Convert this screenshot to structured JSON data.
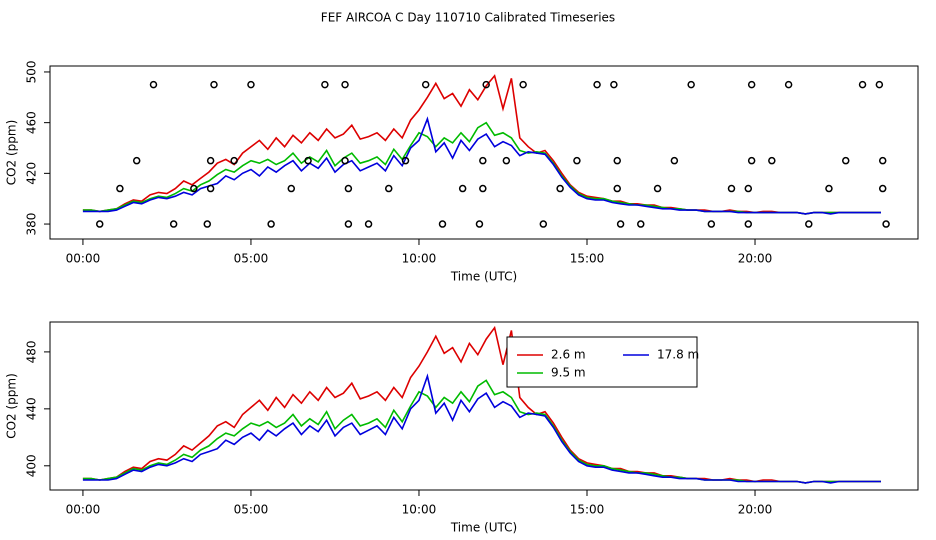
{
  "title": "FEF AIRCOA C  Day 110710  Calibrated Timeseries",
  "chart_data": [
    {
      "type": "line",
      "xlabel": "Time (UTC)",
      "ylabel": "CO2 (ppm)",
      "xlim": [
        -0.98,
        24.85
      ],
      "ylim": [
        368.2,
        504.7
      ],
      "xticks": [
        {
          "value": 0,
          "label": "00:00"
        },
        {
          "value": 5,
          "label": "05:00"
        },
        {
          "value": 10,
          "label": "10:00"
        },
        {
          "value": 15,
          "label": "15:00"
        },
        {
          "value": 20,
          "label": "20:00"
        }
      ],
      "yticks": [
        380,
        420,
        460,
        500
      ],
      "x": [
        0,
        0.25,
        0.5,
        0.75,
        1,
        1.25,
        1.5,
        1.75,
        2,
        2.25,
        2.5,
        2.75,
        3,
        3.25,
        3.5,
        3.75,
        4,
        4.25,
        4.5,
        4.75,
        5,
        5.25,
        5.5,
        5.75,
        6,
        6.25,
        6.5,
        6.75,
        7,
        7.25,
        7.5,
        7.75,
        8,
        8.25,
        8.5,
        8.75,
        9,
        9.25,
        9.5,
        9.75,
        10,
        10.25,
        10.5,
        10.75,
        11,
        11.25,
        11.5,
        11.75,
        12,
        12.25,
        12.5,
        12.75,
        13,
        13.25,
        13.5,
        13.75,
        14,
        14.25,
        14.5,
        14.75,
        15,
        15.25,
        15.5,
        15.75,
        16,
        16.25,
        16.5,
        16.75,
        17,
        17.25,
        17.5,
        17.75,
        18,
        18.25,
        18.5,
        18.75,
        19,
        19.25,
        19.5,
        19.75,
        20,
        20.25,
        20.5,
        20.75,
        21,
        21.25,
        21.5,
        21.75,
        22,
        22.25,
        22.5,
        22.75,
        23,
        23.25,
        23.5,
        23.75
      ],
      "series": [
        {
          "color": "#dd0000",
          "values": [
            391,
            391,
            390,
            391,
            392,
            396,
            399,
            398,
            403,
            405,
            404,
            408,
            414,
            411,
            416,
            421,
            428,
            431,
            427,
            436,
            441,
            446,
            439,
            448,
            441,
            450,
            444,
            452,
            446,
            455,
            448,
            451,
            458,
            447,
            449,
            452,
            446,
            455,
            448,
            462,
            470,
            480,
            491,
            479,
            483,
            473,
            486,
            478,
            489,
            497,
            471,
            495,
            448,
            441,
            436,
            438,
            430,
            420,
            411,
            405,
            402,
            401,
            400,
            398,
            398,
            396,
            396,
            395,
            395,
            393,
            393,
            392,
            391,
            391,
            391,
            390,
            390,
            391,
            390,
            390,
            389,
            390,
            390,
            389,
            389,
            389,
            388,
            389,
            389,
            389,
            389,
            389,
            389,
            389,
            389,
            389
          ]
        },
        {
          "color": "#00bb00",
          "values": [
            391,
            391,
            390,
            391,
            392,
            395,
            398,
            397,
            400,
            402,
            401,
            404,
            408,
            406,
            411,
            414,
            419,
            423,
            421,
            426,
            430,
            428,
            431,
            427,
            430,
            436,
            428,
            433,
            429,
            438,
            426,
            432,
            436,
            428,
            430,
            433,
            427,
            439,
            431,
            442,
            452,
            449,
            441,
            448,
            444,
            452,
            445,
            456,
            460,
            450,
            452,
            448,
            438,
            436,
            437,
            436,
            428,
            418,
            410,
            404,
            401,
            400,
            400,
            398,
            397,
            396,
            395,
            395,
            394,
            393,
            392,
            392,
            391,
            391,
            390,
            390,
            390,
            390,
            390,
            389,
            389,
            389,
            389,
            389,
            389,
            389,
            388,
            389,
            389,
            389,
            389,
            389,
            389,
            389,
            389,
            389
          ]
        },
        {
          "color": "#0000dd",
          "values": [
            390,
            390,
            390,
            390,
            391,
            394,
            397,
            396,
            399,
            401,
            400,
            402,
            405,
            403,
            408,
            410,
            412,
            418,
            415,
            420,
            423,
            418,
            425,
            421,
            426,
            430,
            422,
            428,
            424,
            432,
            421,
            427,
            430,
            422,
            425,
            428,
            422,
            434,
            426,
            440,
            446,
            463,
            437,
            444,
            432,
            446,
            438,
            447,
            451,
            441,
            445,
            442,
            434,
            437,
            436,
            435,
            427,
            417,
            409,
            403,
            400,
            399,
            399,
            397,
            396,
            395,
            395,
            394,
            393,
            392,
            392,
            391,
            391,
            391,
            390,
            390,
            390,
            390,
            389,
            389,
            389,
            389,
            389,
            389,
            389,
            389,
            388,
            389,
            389,
            388,
            389,
            389,
            389,
            389,
            389,
            389
          ]
        }
      ],
      "points": {
        "x": [
          0.5,
          1.1,
          1.6,
          2.1,
          2.7,
          3.3,
          3.7,
          3.8,
          3.8,
          3.9,
          4.5,
          5.0,
          5.6,
          6.2,
          6.7,
          7.2,
          7.8,
          7.8,
          7.9,
          7.9,
          8.5,
          9.1,
          9.6,
          10.2,
          10.7,
          11.3,
          11.8,
          11.9,
          11.9,
          12.0,
          12.6,
          13.1,
          13.7,
          14.2,
          14.7,
          15.3,
          15.8,
          15.9,
          15.9,
          16.0,
          16.6,
          17.1,
          17.6,
          18.1,
          18.7,
          19.3,
          19.8,
          19.8,
          19.9,
          19.9,
          20.5,
          21.0,
          21.6,
          22.2,
          22.7,
          23.2,
          23.7,
          23.8,
          23.8,
          23.9
        ],
        "values": [
          380,
          408,
          430,
          490,
          380,
          408,
          380,
          408,
          430,
          490,
          430,
          490,
          380,
          408,
          430,
          490,
          490,
          430,
          408,
          380,
          380,
          408,
          430,
          490,
          380,
          408,
          380,
          408,
          430,
          490,
          430,
          490,
          380,
          408,
          430,
          490,
          490,
          430,
          408,
          380,
          380,
          408,
          430,
          490,
          380,
          408,
          380,
          408,
          430,
          490,
          430,
          490,
          380,
          408,
          430,
          490,
          490,
          430,
          408,
          380
        ],
        "color": "#000000"
      }
    },
    {
      "type": "line",
      "xlabel": "Time (UTC)",
      "ylabel": "CO2 (ppm)",
      "xlim": [
        -0.98,
        24.85
      ],
      "ylim": [
        383,
        501
      ],
      "xticks": [
        {
          "value": 0,
          "label": "00:00"
        },
        {
          "value": 5,
          "label": "05:00"
        },
        {
          "value": 10,
          "label": "10:00"
        },
        {
          "value": 15,
          "label": "15:00"
        },
        {
          "value": 20,
          "label": "20:00"
        }
      ],
      "yticks": [
        400,
        440,
        480
      ],
      "legend": true,
      "x": [
        0,
        0.25,
        0.5,
        0.75,
        1,
        1.25,
        1.5,
        1.75,
        2,
        2.25,
        2.5,
        2.75,
        3,
        3.25,
        3.5,
        3.75,
        4,
        4.25,
        4.5,
        4.75,
        5,
        5.25,
        5.5,
        5.75,
        6,
        6.25,
        6.5,
        6.75,
        7,
        7.25,
        7.5,
        7.75,
        8,
        8.25,
        8.5,
        8.75,
        9,
        9.25,
        9.5,
        9.75,
        10,
        10.25,
        10.5,
        10.75,
        11,
        11.25,
        11.5,
        11.75,
        12,
        12.25,
        12.5,
        12.75,
        13,
        13.25,
        13.5,
        13.75,
        14,
        14.25,
        14.5,
        14.75,
        15,
        15.25,
        15.5,
        15.75,
        16,
        16.25,
        16.5,
        16.75,
        17,
        17.25,
        17.5,
        17.75,
        18,
        18.25,
        18.5,
        18.75,
        19,
        19.25,
        19.5,
        19.75,
        20,
        20.25,
        20.5,
        20.75,
        21,
        21.25,
        21.5,
        21.75,
        22,
        22.25,
        22.5,
        22.75,
        23,
        23.25,
        23.5,
        23.75
      ],
      "series": [
        {
          "name": "2.6 m",
          "color": "#dd0000",
          "values": [
            391,
            391,
            390,
            391,
            392,
            396,
            399,
            398,
            403,
            405,
            404,
            408,
            414,
            411,
            416,
            421,
            428,
            431,
            427,
            436,
            441,
            446,
            439,
            448,
            441,
            450,
            444,
            452,
            446,
            455,
            448,
            451,
            458,
            447,
            449,
            452,
            446,
            455,
            448,
            462,
            470,
            480,
            491,
            479,
            483,
            473,
            486,
            478,
            489,
            497,
            471,
            495,
            448,
            441,
            436,
            438,
            430,
            420,
            411,
            405,
            402,
            401,
            400,
            398,
            398,
            396,
            396,
            395,
            395,
            393,
            393,
            392,
            391,
            391,
            391,
            390,
            390,
            391,
            390,
            390,
            389,
            390,
            390,
            389,
            389,
            389,
            388,
            389,
            389,
            389,
            389,
            389,
            389,
            389,
            389,
            389
          ]
        },
        {
          "name": "9.5 m",
          "color": "#00bb00",
          "values": [
            391,
            391,
            390,
            391,
            392,
            395,
            398,
            397,
            400,
            402,
            401,
            404,
            408,
            406,
            411,
            414,
            419,
            423,
            421,
            426,
            430,
            428,
            431,
            427,
            430,
            436,
            428,
            433,
            429,
            438,
            426,
            432,
            436,
            428,
            430,
            433,
            427,
            439,
            431,
            442,
            452,
            449,
            441,
            448,
            444,
            452,
            445,
            456,
            460,
            450,
            452,
            448,
            438,
            436,
            437,
            436,
            428,
            418,
            410,
            404,
            401,
            400,
            400,
            398,
            397,
            396,
            395,
            395,
            394,
            393,
            392,
            392,
            391,
            391,
            390,
            390,
            390,
            390,
            390,
            389,
            389,
            389,
            389,
            389,
            389,
            389,
            388,
            389,
            389,
            389,
            389,
            389,
            389,
            389,
            389,
            389
          ]
        },
        {
          "name": "17.8 m",
          "color": "#0000dd",
          "values": [
            390,
            390,
            390,
            390,
            391,
            394,
            397,
            396,
            399,
            401,
            400,
            402,
            405,
            403,
            408,
            410,
            412,
            418,
            415,
            420,
            423,
            418,
            425,
            421,
            426,
            430,
            422,
            428,
            424,
            432,
            421,
            427,
            430,
            422,
            425,
            428,
            422,
            434,
            426,
            440,
            446,
            463,
            437,
            444,
            432,
            446,
            438,
            447,
            451,
            441,
            445,
            442,
            434,
            437,
            436,
            435,
            427,
            417,
            409,
            403,
            400,
            399,
            399,
            397,
            396,
            395,
            395,
            394,
            393,
            392,
            392,
            391,
            391,
            391,
            390,
            390,
            390,
            390,
            389,
            389,
            389,
            389,
            389,
            389,
            389,
            389,
            388,
            389,
            389,
            388,
            389,
            389,
            389,
            389,
            389,
            389
          ]
        }
      ]
    }
  ]
}
